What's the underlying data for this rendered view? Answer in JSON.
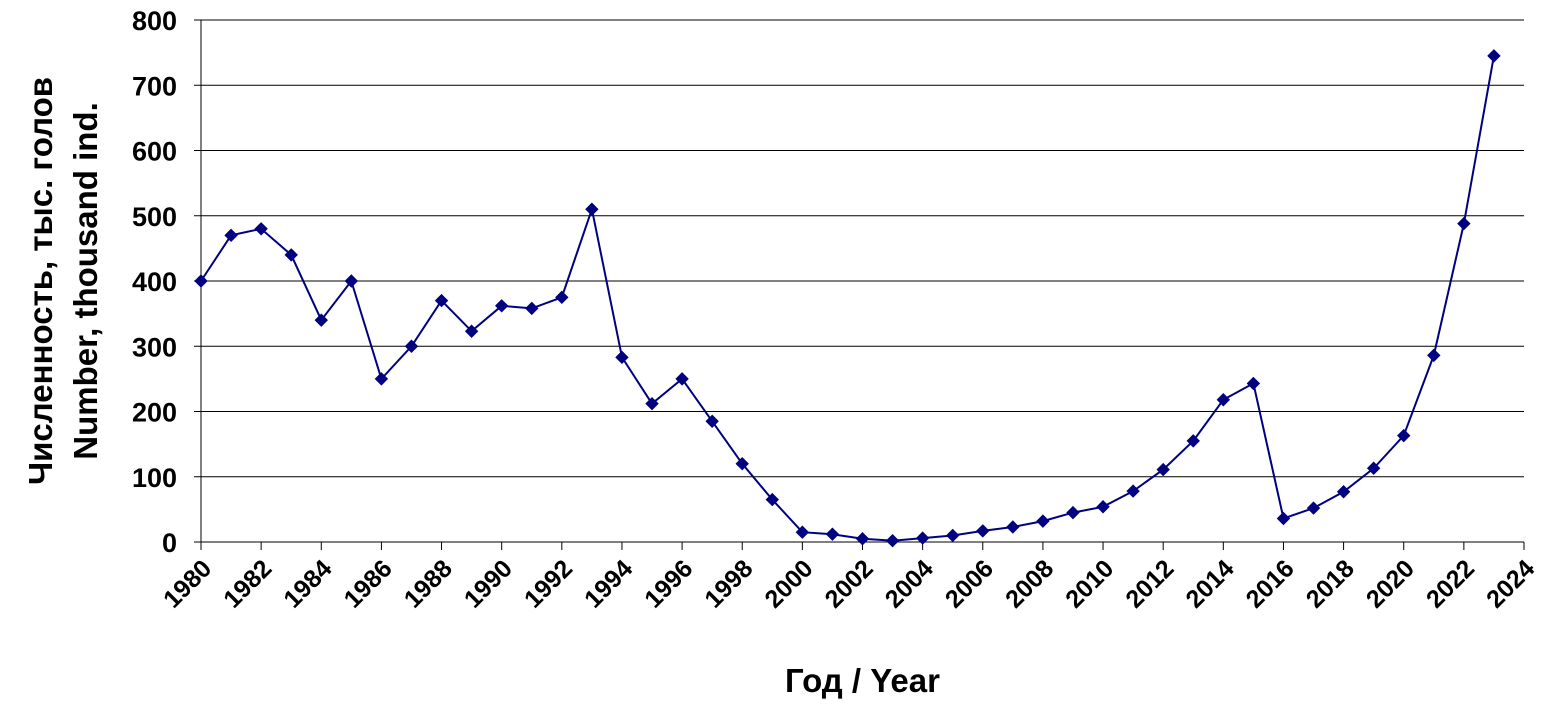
{
  "chart_data": {
    "type": "line",
    "xlabel": "Год / Year",
    "ylabel_lines": [
      "Численность, тыс. голов",
      "Number, thousand ind."
    ],
    "xlim": [
      1980,
      2024
    ],
    "ylim": [
      0,
      800
    ],
    "x_ticks": [
      "1980",
      "1982",
      "1984",
      "1986",
      "1988",
      "1990",
      "1992",
      "1994",
      "1996",
      "1998",
      "2000",
      "2002",
      "2004",
      "2006",
      "2008",
      "2010",
      "2012",
      "2014",
      "2016",
      "2018",
      "2020",
      "2022",
      "2024"
    ],
    "y_ticks": [
      "0",
      "100",
      "200",
      "300",
      "400",
      "500",
      "600",
      "700",
      "800"
    ],
    "grid": "horizontal",
    "line_color": "#000080",
    "marker": "diamond",
    "series": [
      {
        "x": [
          1980,
          1981,
          1982,
          1983,
          1984,
          1985,
          1986,
          1987,
          1988,
          1989,
          1990,
          1991,
          1992,
          1993,
          1994,
          1995,
          1996,
          1997,
          1998,
          1999,
          2000,
          2001,
          2002,
          2003,
          2004,
          2005,
          2006,
          2007,
          2008,
          2009,
          2010,
          2011,
          2012,
          2013,
          2014,
          2015,
          2016,
          2017,
          2018,
          2019,
          2020,
          2021,
          2022,
          2023
        ],
        "values": [
          400,
          470,
          480,
          440,
          340,
          400,
          250,
          300,
          370,
          323,
          362,
          358,
          375,
          510,
          283,
          212,
          250,
          185,
          120,
          65,
          15,
          12,
          5,
          2,
          6,
          10,
          17,
          23,
          32,
          45,
          54,
          78,
          111,
          155,
          218,
          243,
          36,
          52,
          77,
          113,
          163,
          286,
          488,
          745
        ]
      }
    ]
  }
}
